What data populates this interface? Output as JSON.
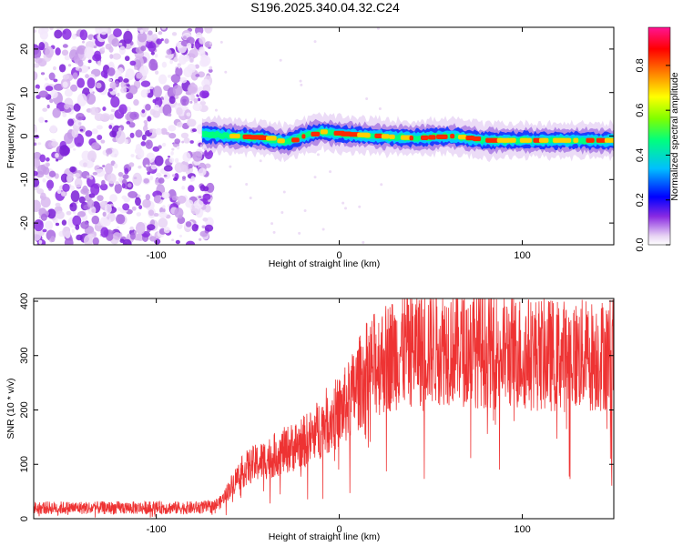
{
  "title": "S196.2025.340.04.32.C24",
  "chart_data": [
    {
      "type": "heatmap",
      "name": "spectrogram",
      "xlabel": "Height of straight line (km)",
      "ylabel": "Frequency (Hz)",
      "xlim": [
        -167,
        150
      ],
      "ylim": [
        -25,
        25
      ],
      "xticks": [
        -100,
        0,
        100
      ],
      "xtick_labels": [
        "-100",
        "0",
        "100"
      ],
      "yticks": [
        -20,
        -10,
        0,
        10,
        20
      ],
      "ytick_labels": [
        "-20",
        "-10",
        "0",
        "10",
        "20"
      ],
      "noise_region_x": [
        -167,
        -73
      ],
      "signal_region_x": [
        -75,
        150
      ],
      "signal_center_hz": [
        [
          -75,
          0.5
        ],
        [
          -60,
          0
        ],
        [
          -40,
          -0.5
        ],
        [
          -30,
          -1.5
        ],
        [
          -20,
          0
        ],
        [
          -10,
          1
        ],
        [
          0,
          0.5
        ],
        [
          20,
          0
        ],
        [
          40,
          -0.5
        ],
        [
          60,
          0
        ],
        [
          80,
          -1
        ],
        [
          120,
          -1
        ],
        [
          150,
          -1
        ]
      ],
      "colorbar": {
        "label": "Normalized spectral amplitude",
        "range": [
          0.0,
          0.97
        ],
        "ticks": [
          0.0,
          0.2,
          0.4,
          0.6,
          0.8
        ],
        "tick_labels": [
          "0.0",
          "0.2",
          "0.4",
          "0.6",
          "0.8"
        ],
        "colors": [
          "#ffffff",
          "#e8d4f4",
          "#8a2be2",
          "#0000ff",
          "#00bfff",
          "#00ff7f",
          "#7fff00",
          "#ffff00",
          "#ff8c00",
          "#ff0000",
          "#ff1493"
        ]
      }
    },
    {
      "type": "line",
      "name": "snr",
      "xlabel": "Height of straight line (km)",
      "ylabel": "SNR (10 * v/v)",
      "xlim": [
        -167,
        150
      ],
      "ylim": [
        0,
        405
      ],
      "xticks": [
        -100,
        0,
        100
      ],
      "xtick_labels": [
        "-100",
        "0",
        "100"
      ],
      "yticks": [
        0,
        100,
        200,
        300,
        400
      ],
      "ytick_labels": [
        "0",
        "100",
        "200",
        "300",
        "400"
      ],
      "color": "#ee3333",
      "series": [
        {
          "name": "SNR trend",
          "x": [
            -167,
            -140,
            -100,
            -80,
            -70,
            -65,
            -60,
            -55,
            -50,
            -40,
            -30,
            -20,
            -15,
            -10,
            -5,
            0,
            5,
            10,
            15,
            20,
            30,
            40,
            60,
            80,
            100,
            120,
            140,
            150
          ],
          "values": [
            20,
            20,
            20,
            20,
            22,
            30,
            55,
            80,
            95,
            110,
            125,
            140,
            150,
            170,
            185,
            195,
            215,
            245,
            270,
            285,
            305,
            315,
            320,
            310,
            305,
            300,
            300,
            305
          ]
        }
      ]
    }
  ]
}
